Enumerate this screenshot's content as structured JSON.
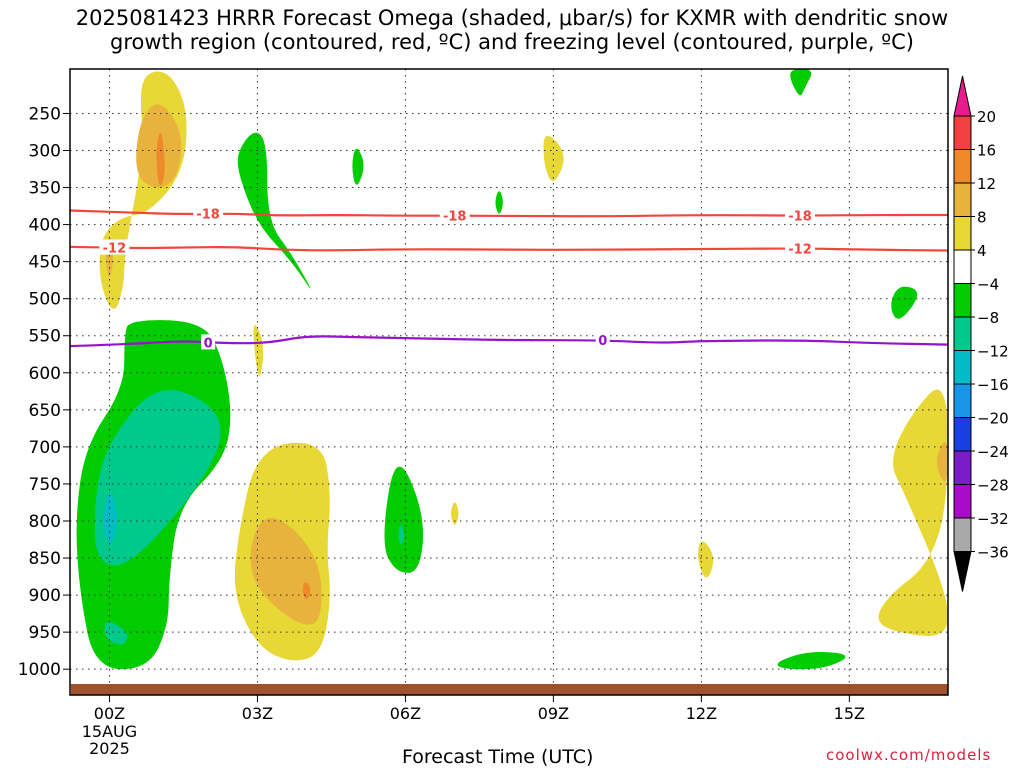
{
  "header": {
    "title_line1": "2025081423 HRRR Forecast Omega (shaded, μbar/s) for KXMR with dendritic snow",
    "title_line2": "growth region (contoured, red, ºC) and freezing level (contoured, purple, ºC)"
  },
  "footer": {
    "xlabel": "Forecast Time (UTC)",
    "credit": "coolwx.com/models"
  },
  "chart_data": {
    "type": "time-height cross section",
    "x_axis": {
      "label": "Forecast Time (UTC)",
      "range_hours": [
        -0.8,
        17.0
      ],
      "ticks": [
        {
          "hour": 0,
          "label": "00Z"
        },
        {
          "hour": 3,
          "label": "03Z"
        },
        {
          "hour": 6,
          "label": "06Z"
        },
        {
          "hour": 9,
          "label": "09Z"
        },
        {
          "hour": 12,
          "label": "12Z"
        },
        {
          "hour": 15,
          "label": "15Z"
        }
      ],
      "date_label": [
        "15AUG",
        "2025"
      ]
    },
    "y_axis": {
      "units": "hPa",
      "range": [
        1020,
        190
      ],
      "ticks": [
        250,
        300,
        350,
        400,
        450,
        500,
        550,
        600,
        650,
        700,
        750,
        800,
        850,
        900,
        950,
        1000
      ],
      "grid": "dotted"
    },
    "colorbar": {
      "units": "μbar/s",
      "labels": [
        "20",
        "16",
        "12",
        "8",
        "4",
        "−4",
        "−8",
        "−12",
        "−16",
        "−20",
        "−24",
        "−28",
        "−32",
        "−36"
      ],
      "colors": [
        "#e81a8c",
        "#f24040",
        "#ee8a2a",
        "#e7b33c",
        "#e8d836",
        "#ffffff",
        "#00cc00",
        "#00c98c",
        "#00bcc7",
        "#1a96e8",
        "#1a3fe0",
        "#7a1cc8",
        "#a80cc8",
        "#a8a8a8",
        "#000000"
      ]
    },
    "contours": [
      {
        "label": "-18",
        "color": "#f0463c",
        "points": [
          [
            -0.8,
            381
          ],
          [
            0.5,
            384
          ],
          [
            1.5,
            386
          ],
          [
            2.5,
            385
          ],
          [
            3.5,
            388
          ],
          [
            4.5,
            387
          ],
          [
            6,
            388
          ],
          [
            8,
            388
          ],
          [
            10,
            389
          ],
          [
            12,
            387
          ],
          [
            14,
            388
          ],
          [
            15.5,
            387
          ],
          [
            17,
            387
          ]
        ]
      },
      {
        "label": "-12",
        "color": "#f0463c",
        "points": [
          [
            -0.8,
            430
          ],
          [
            0.5,
            432
          ],
          [
            1.5,
            431
          ],
          [
            2.5,
            430
          ],
          [
            3.5,
            434
          ],
          [
            4.5,
            435
          ],
          [
            6,
            433
          ],
          [
            8,
            434
          ],
          [
            10,
            434
          ],
          [
            12,
            433
          ],
          [
            14,
            432
          ],
          [
            15.5,
            434
          ],
          [
            17,
            435
          ]
        ]
      },
      {
        "label": "0",
        "color": "#9414c8",
        "points": [
          [
            -0.8,
            564
          ],
          [
            0.5,
            561
          ],
          [
            1.5,
            557
          ],
          [
            2.3,
            560
          ],
          [
            3.2,
            560
          ],
          [
            4.0,
            550
          ],
          [
            5,
            552
          ],
          [
            6,
            553
          ],
          [
            8,
            556
          ],
          [
            10,
            556
          ],
          [
            11.2,
            560
          ],
          [
            12,
            557
          ],
          [
            14,
            556
          ],
          [
            15.5,
            560
          ],
          [
            17,
            562
          ]
        ]
      }
    ],
    "contour_labels": [
      {
        "text": "-18",
        "hour": 2.0,
        "p": 385
      },
      {
        "text": "-18",
        "hour": 7.0,
        "p": 388
      },
      {
        "text": "-18",
        "hour": 14.0,
        "p": 388
      },
      {
        "text": "-12",
        "hour": 0.1,
        "p": 431
      },
      {
        "text": "-12",
        "hour": 14.0,
        "p": 432
      },
      {
        "text": "0",
        "hour": 2.0,
        "p": 559
      },
      {
        "text": "0",
        "hour": 10.0,
        "p": 556
      }
    ],
    "shaded_regions": [
      {
        "level": "4",
        "color": "#e8d836",
        "points": [
          [
            0.9,
            190
          ],
          [
            1.3,
            200
          ],
          [
            1.6,
            250
          ],
          [
            1.5,
            330
          ],
          [
            0.8,
            385
          ],
          [
            0.2,
            390
          ],
          [
            -0.2,
            420
          ],
          [
            -0.2,
            480
          ],
          [
            0.1,
            525
          ],
          [
            0.3,
            480
          ],
          [
            0.3,
            440
          ],
          [
            0.7,
            300
          ],
          [
            0.6,
            210
          ]
        ]
      },
      {
        "level": "8",
        "color": "#e7b33c",
        "points": [
          [
            1.0,
            228
          ],
          [
            1.5,
            275
          ],
          [
            1.4,
            335
          ],
          [
            1.0,
            355
          ],
          [
            0.5,
            335
          ],
          [
            0.6,
            260
          ]
        ]
      },
      {
        "level": "12",
        "color": "#ee8a2a",
        "points": [
          [
            1.05,
            265
          ],
          [
            1.15,
            330
          ],
          [
            1.0,
            355
          ],
          [
            0.93,
            300
          ]
        ]
      },
      {
        "level": "8",
        "color": "#e7b33c",
        "points": [
          [
            0.0,
            410
          ],
          [
            0.1,
            440
          ],
          [
            0.0,
            480
          ],
          [
            -0.1,
            440
          ]
        ]
      },
      {
        "level": "4",
        "color": "#e8d836",
        "points": [
          [
            2.9,
            525
          ],
          [
            3.15,
            560
          ],
          [
            3.05,
            615
          ],
          [
            2.95,
            580
          ]
        ]
      },
      {
        "level": "4",
        "color": "#e8d836",
        "points": [
          [
            3.0,
            700
          ],
          [
            4.3,
            690
          ],
          [
            4.5,
            760
          ],
          [
            4.4,
            840
          ],
          [
            4.5,
            905
          ],
          [
            4.3,
            980
          ],
          [
            3.7,
            992
          ],
          [
            3.0,
            970
          ],
          [
            2.5,
            900
          ],
          [
            2.6,
            820
          ]
        ]
      },
      {
        "level": "8",
        "color": "#e7b33c",
        "points": [
          [
            3.1,
            790
          ],
          [
            3.7,
            805
          ],
          [
            4.3,
            860
          ],
          [
            4.3,
            940
          ],
          [
            3.8,
            940
          ],
          [
            3.0,
            895
          ],
          [
            2.8,
            845
          ]
        ]
      },
      {
        "level": "12",
        "color": "#ee8a2a",
        "points": [
          [
            3.95,
            880
          ],
          [
            4.1,
            890
          ],
          [
            4.0,
            910
          ],
          [
            3.9,
            895
          ]
        ]
      },
      {
        "level": "4",
        "color": "#e8d836",
        "points": [
          [
            8.8,
            270
          ],
          [
            9.3,
            305
          ],
          [
            9.0,
            350
          ],
          [
            8.8,
            320
          ]
        ]
      },
      {
        "level": "4",
        "color": "#e8d836",
        "points": [
          [
            7.0,
            770
          ],
          [
            7.1,
            790
          ],
          [
            7.0,
            810
          ],
          [
            6.9,
            790
          ]
        ]
      },
      {
        "level": "4",
        "color": "#e8d836",
        "points": [
          [
            12.0,
            820
          ],
          [
            12.3,
            850
          ],
          [
            12.1,
            885
          ],
          [
            11.9,
            850
          ]
        ]
      },
      {
        "level": "4",
        "color": "#e8d836",
        "points": [
          [
            17.0,
            600
          ],
          [
            17.0,
            780
          ],
          [
            16.6,
            860
          ],
          [
            15.8,
            900
          ],
          [
            15.5,
            935
          ],
          [
            16.0,
            952
          ],
          [
            17.0,
            958
          ],
          [
            17.0,
            900
          ],
          [
            16.1,
            760
          ],
          [
            15.8,
            720
          ],
          [
            16.2,
            660
          ]
        ]
      },
      {
        "level": "8",
        "color": "#e7b33c",
        "points": [
          [
            17.0,
            680
          ],
          [
            17.0,
            760
          ],
          [
            16.7,
            720
          ]
        ]
      },
      {
        "level": "-4",
        "color": "#00cc00",
        "points": [
          [
            0.4,
            528
          ],
          [
            1.9,
            530
          ],
          [
            2.3,
            580
          ],
          [
            2.5,
            660
          ],
          [
            2.3,
            720
          ],
          [
            1.4,
            780
          ],
          [
            1.2,
            880
          ],
          [
            1.2,
            940
          ],
          [
            0.8,
            1000
          ],
          [
            -0.3,
            1000
          ],
          [
            -0.6,
            900
          ],
          [
            -0.7,
            800
          ],
          [
            -0.5,
            700
          ],
          [
            0.3,
            620
          ],
          [
            0.3,
            550
          ]
        ]
      },
      {
        "level": "-8",
        "color": "#00c98c",
        "points": [
          [
            1.0,
            610
          ],
          [
            2.3,
            650
          ],
          [
            2.2,
            720
          ],
          [
            0.5,
            860
          ],
          [
            -0.3,
            860
          ],
          [
            -0.3,
            760
          ],
          [
            0.0,
            690
          ]
        ]
      },
      {
        "level": "-12",
        "color": "#00bcc7",
        "points": [
          [
            0.0,
            750
          ],
          [
            0.2,
            800
          ],
          [
            0.0,
            840
          ],
          [
            -0.15,
            800
          ]
        ]
      },
      {
        "level": "-8",
        "color": "#00c98c",
        "points": [
          [
            -0.1,
            930
          ],
          [
            0.4,
            950
          ],
          [
            0.3,
            970
          ],
          [
            -0.1,
            960
          ]
        ]
      },
      {
        "level": "-4",
        "color": "#00cc00",
        "points": [
          [
            2.95,
            270
          ],
          [
            3.2,
            290
          ],
          [
            3.2,
            395
          ],
          [
            3.7,
            440
          ],
          [
            4.2,
            500
          ],
          [
            3.7,
            450
          ],
          [
            3.0,
            400
          ],
          [
            2.6,
            330
          ],
          [
            2.6,
            300
          ]
        ]
      },
      {
        "level": "-4",
        "color": "#00cc00",
        "points": [
          [
            5.0,
            290
          ],
          [
            5.2,
            320
          ],
          [
            5.0,
            355
          ],
          [
            4.9,
            320
          ]
        ]
      },
      {
        "level": "-4",
        "color": "#00cc00",
        "points": [
          [
            7.9,
            350
          ],
          [
            8.0,
            370
          ],
          [
            7.9,
            390
          ],
          [
            7.8,
            370
          ]
        ]
      },
      {
        "level": "-4",
        "color": "#00cc00",
        "points": [
          [
            5.8,
            700
          ],
          [
            6.4,
            790
          ],
          [
            6.3,
            870
          ],
          [
            5.8,
            870
          ],
          [
            5.5,
            830
          ]
        ]
      },
      {
        "level": "-8",
        "color": "#00c98c",
        "points": [
          [
            5.9,
            800
          ],
          [
            6.0,
            820
          ],
          [
            5.9,
            835
          ],
          [
            5.85,
            820
          ]
        ]
      },
      {
        "level": "-4",
        "color": "#00cc00",
        "points": [
          [
            13.8,
            190
          ],
          [
            14.3,
            190
          ],
          [
            14.1,
            215
          ],
          [
            14.0,
            230
          ],
          [
            13.8,
            205
          ]
        ]
      },
      {
        "level": "-4",
        "color": "#00cc00",
        "points": [
          [
            16.0,
            480
          ],
          [
            16.5,
            490
          ],
          [
            16.0,
            535
          ],
          [
            15.8,
            510
          ]
        ]
      },
      {
        "level": "-4",
        "color": "#00cc00",
        "points": [
          [
            13.5,
            990
          ],
          [
            14.2,
            975
          ],
          [
            15.1,
            980
          ],
          [
            14.5,
            1000
          ],
          [
            13.6,
            1000
          ]
        ]
      }
    ]
  }
}
